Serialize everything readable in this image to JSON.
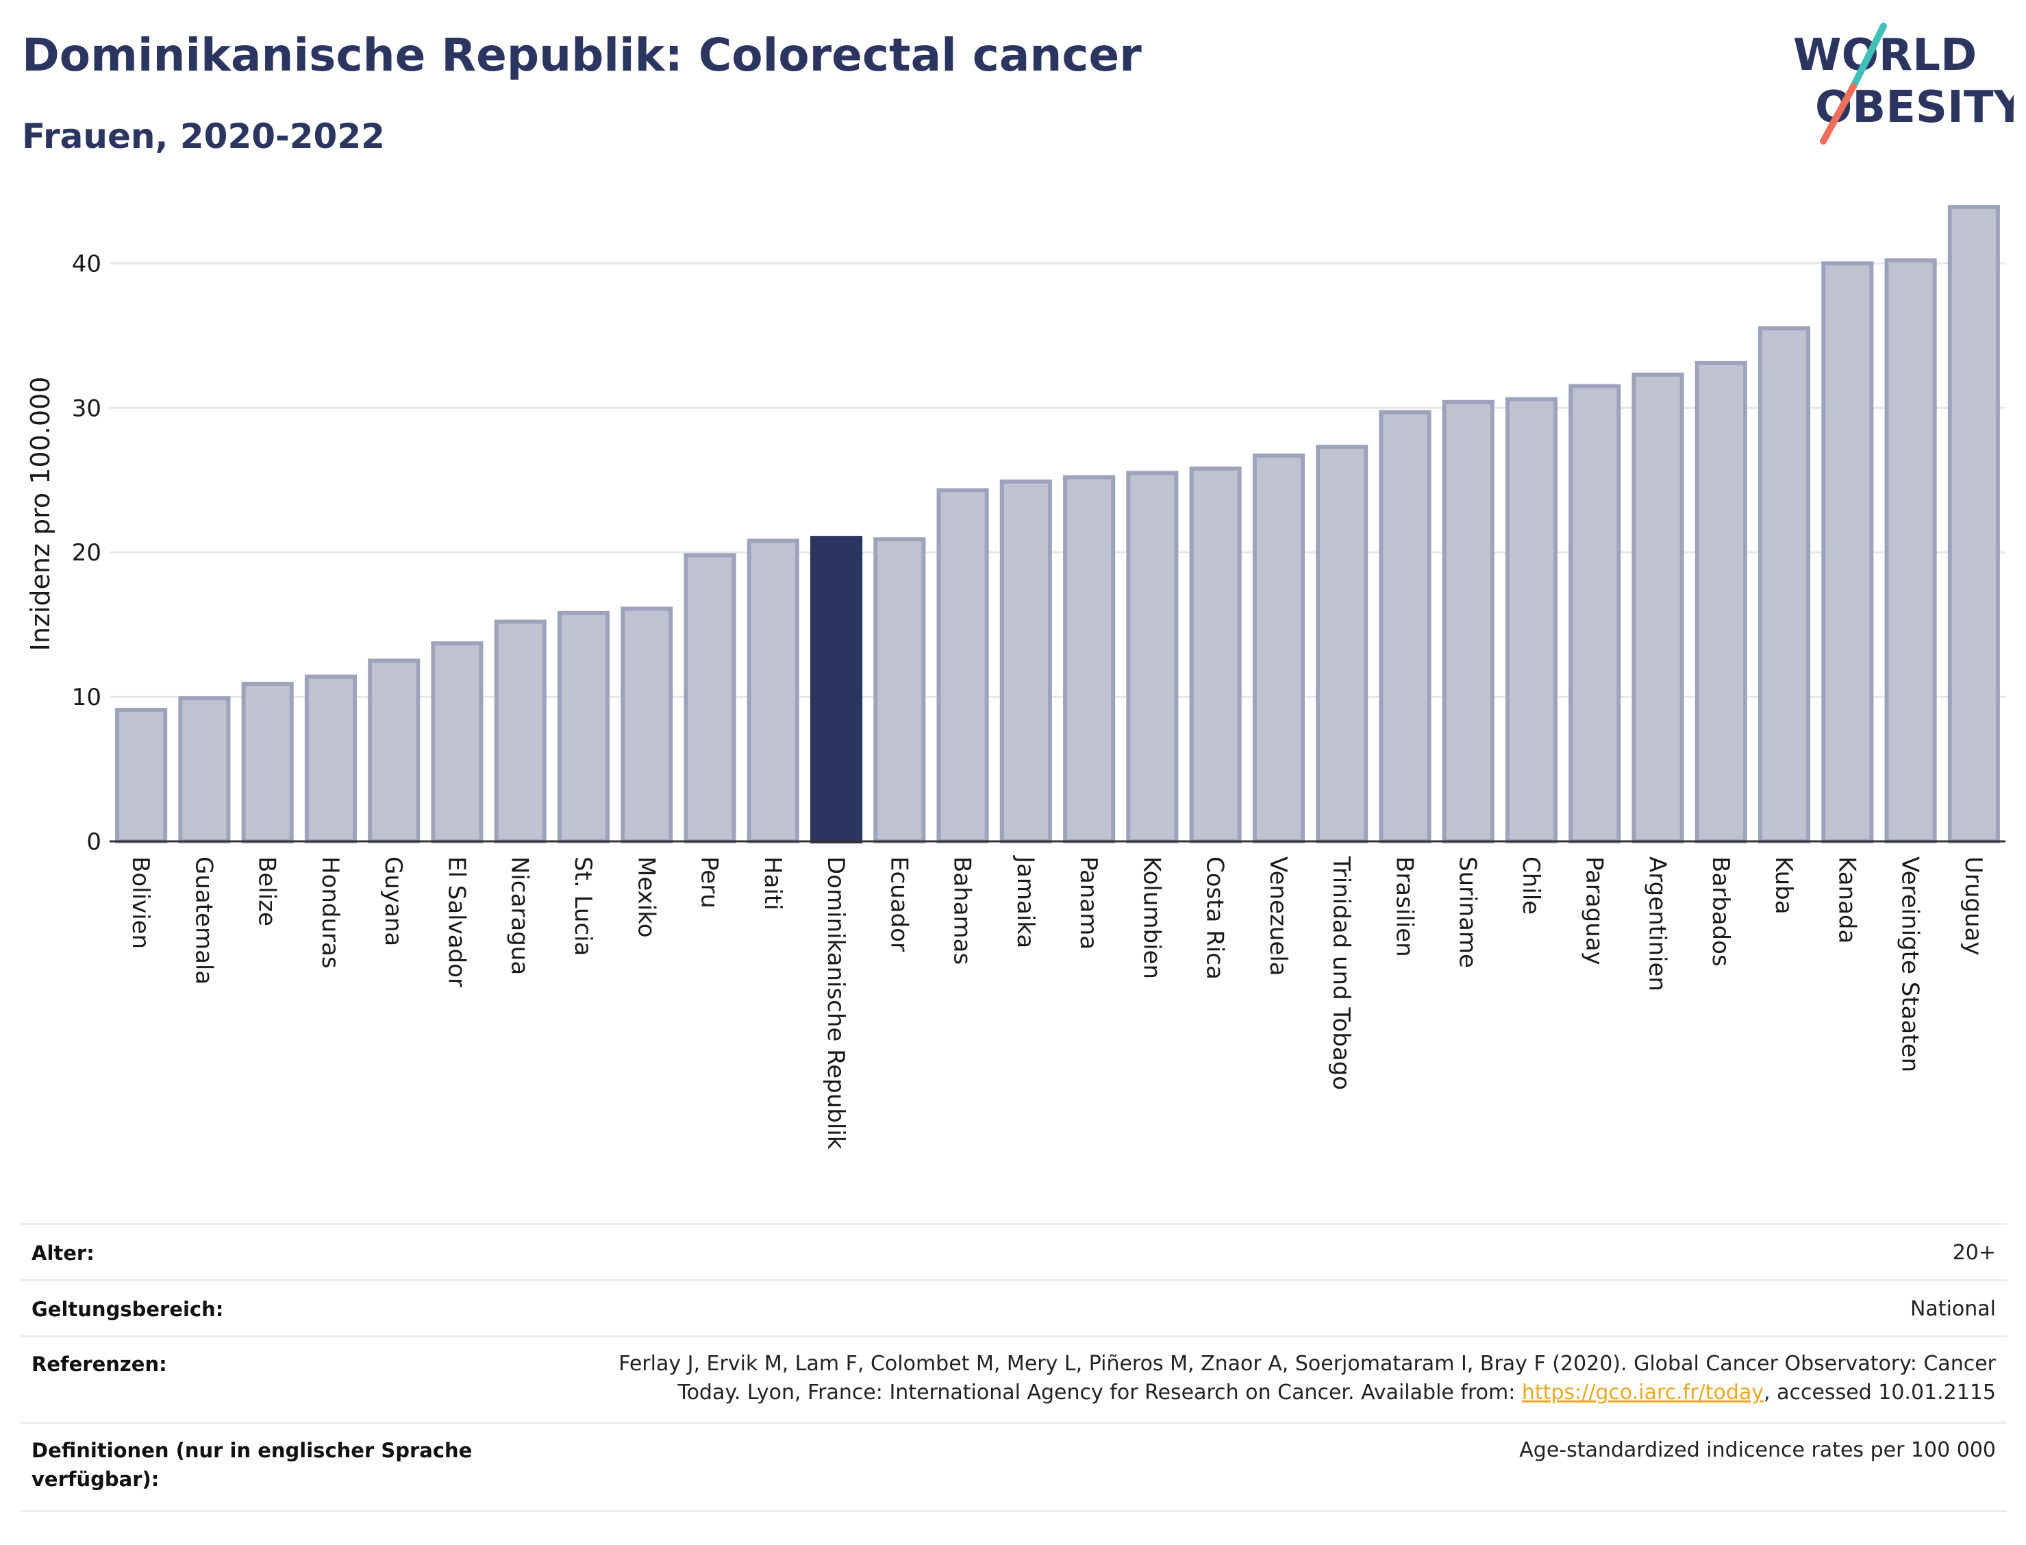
{
  "header": {
    "title": "Dominikanische Republik: Colorectal cancer",
    "subtitle": "Frauen, 2020-2022"
  },
  "logo": {
    "line1": "WORLD",
    "line2": "OBESITY"
  },
  "colors": {
    "highlight": "#2b3560",
    "bar_fill": "#bfc3d1",
    "bar_stroke": "#9da3bb",
    "grid": "#e6e6ec",
    "logo_teal": "#3fc1b8",
    "logo_coral": "#ef6f5e"
  },
  "chart_data": {
    "type": "bar",
    "ylabel": "Inzidenz pro 100.000",
    "ylim": [
      0,
      44
    ],
    "yticks": [
      0,
      10,
      20,
      30,
      40
    ],
    "grid": true,
    "highlight": "Dominikanische Republik",
    "categories": [
      "Bolivien",
      "Guatemala",
      "Belize",
      "Honduras",
      "Guyana",
      "El Salvador",
      "Nicaragua",
      "St. Lucia",
      "Mexiko",
      "Peru",
      "Haiti",
      "Dominikanische Republik",
      "Ecuador",
      "Bahamas",
      "Jamaika",
      "Panama",
      "Kolumbien",
      "Costa Rica",
      "Venezuela",
      "Trinidad und Tobago",
      "Brasilien",
      "Suriname",
      "Chile",
      "Paraguay",
      "Argentinien",
      "Barbados",
      "Kuba",
      "Kanada",
      "Vereinigte Staaten",
      "Uruguay"
    ],
    "values": [
      9.1,
      9.9,
      10.9,
      11.4,
      12.5,
      13.7,
      15.2,
      15.8,
      16.1,
      19.8,
      20.8,
      21.0,
      20.9,
      24.3,
      24.9,
      25.2,
      25.5,
      25.8,
      26.7,
      27.3,
      29.7,
      30.4,
      30.6,
      31.5,
      32.3,
      33.1,
      35.5,
      40.0,
      40.2,
      43.9
    ]
  },
  "meta": {
    "age_label": "Alter:",
    "age_value": "20+",
    "scope_label": "Geltungsbereich:",
    "scope_value": "National",
    "ref_label": "Referenzen:",
    "ref_line1": "Ferlay J, Ervik M, Lam F, Colombet M, Mery L, Piñeros M, Znaor A, Soerjomataram I, Bray F (2020). Global Cancer Observatory: Cancer",
    "ref_line2_pre": "Today. Lyon, France: International Agency for Research on Cancer. Available from: ",
    "ref_link": "https://gco.iarc.fr/today",
    "ref_line2_post": ", accessed 10.01.2115",
    "def_label_line1": "Definitionen (nur in englischer Sprache",
    "def_label_line2": "verfügbar):",
    "def_value": "Age-standardized indicence rates per 100 000"
  }
}
